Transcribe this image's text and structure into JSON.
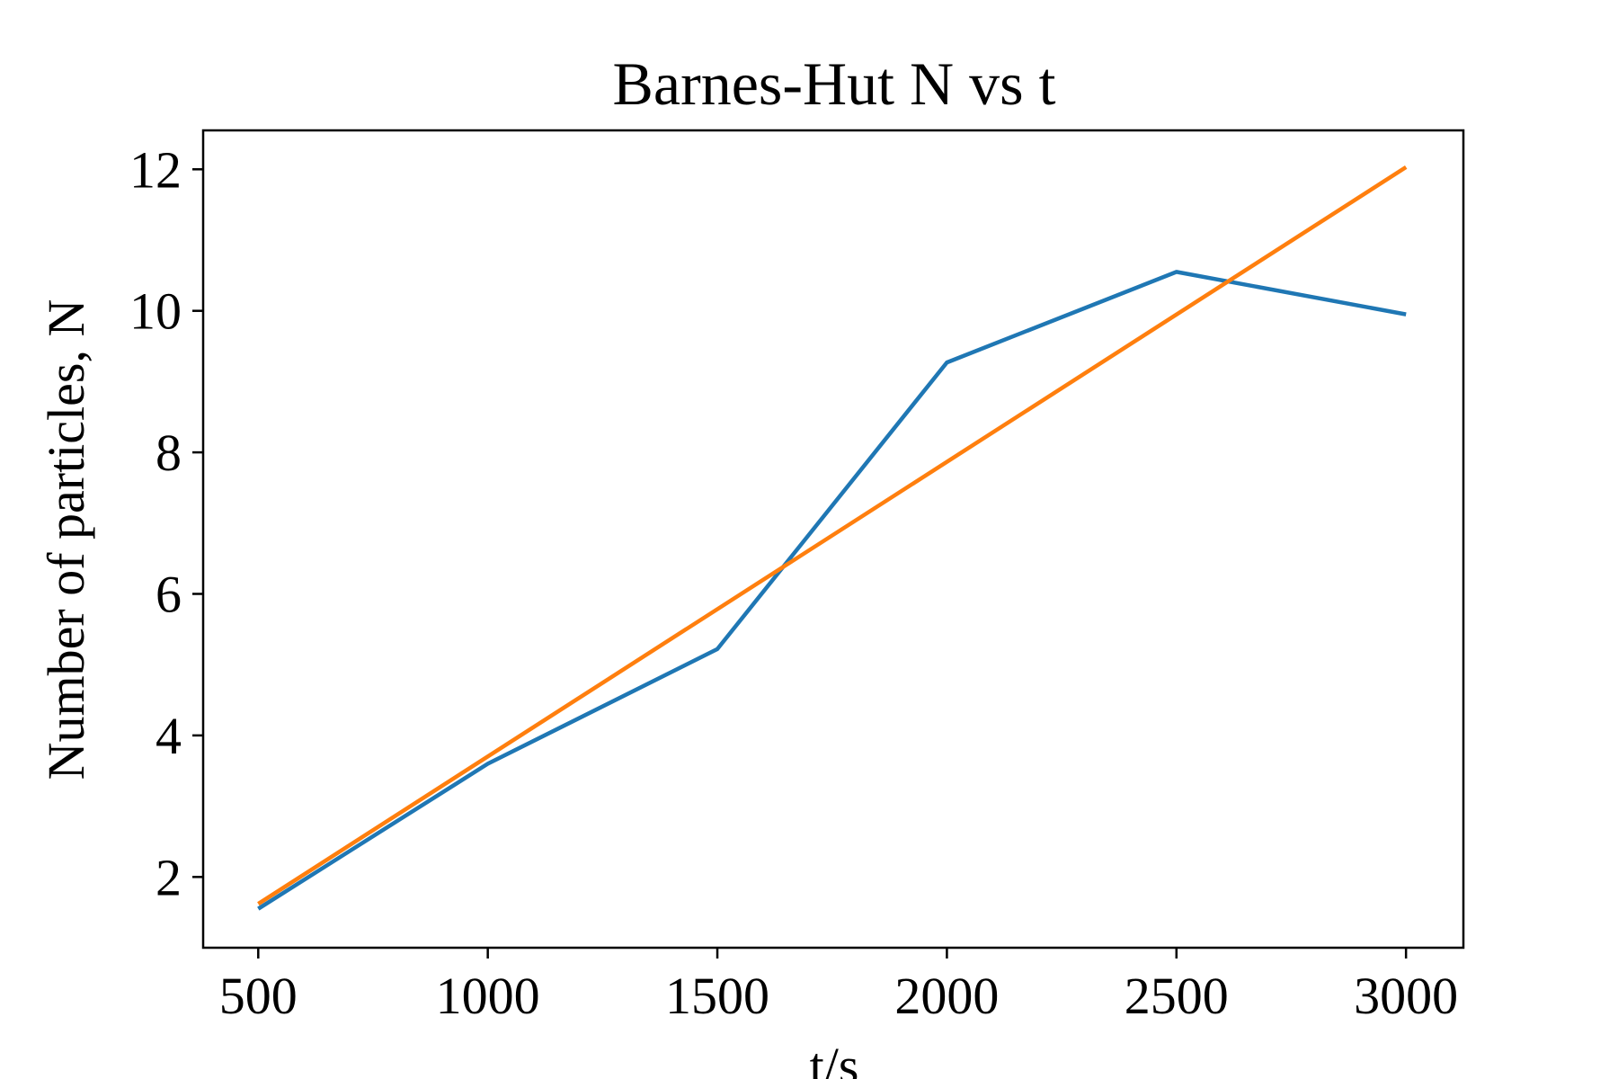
{
  "chart_data": {
    "type": "line",
    "title": "Barnes-Hut N vs t",
    "xlabel": "t/s",
    "ylabel": "Number of particles, N",
    "xlim": [
      380,
      3125
    ],
    "ylim": [
      1.0,
      12.55
    ],
    "xticks": [
      500,
      1000,
      1500,
      2000,
      2500,
      3000
    ],
    "yticks": [
      2,
      4,
      6,
      8,
      10,
      12
    ],
    "grid": false,
    "legend": "none",
    "series": [
      {
        "color": "#1f77b4",
        "x": [
          500,
          1000,
          1500,
          2000,
          2500,
          3000
        ],
        "y": [
          1.55,
          3.6,
          5.22,
          9.27,
          10.55,
          9.95
        ]
      },
      {
        "color": "#ff7f0e",
        "x": [
          500,
          3000
        ],
        "y": [
          1.62,
          12.03
        ]
      }
    ]
  }
}
